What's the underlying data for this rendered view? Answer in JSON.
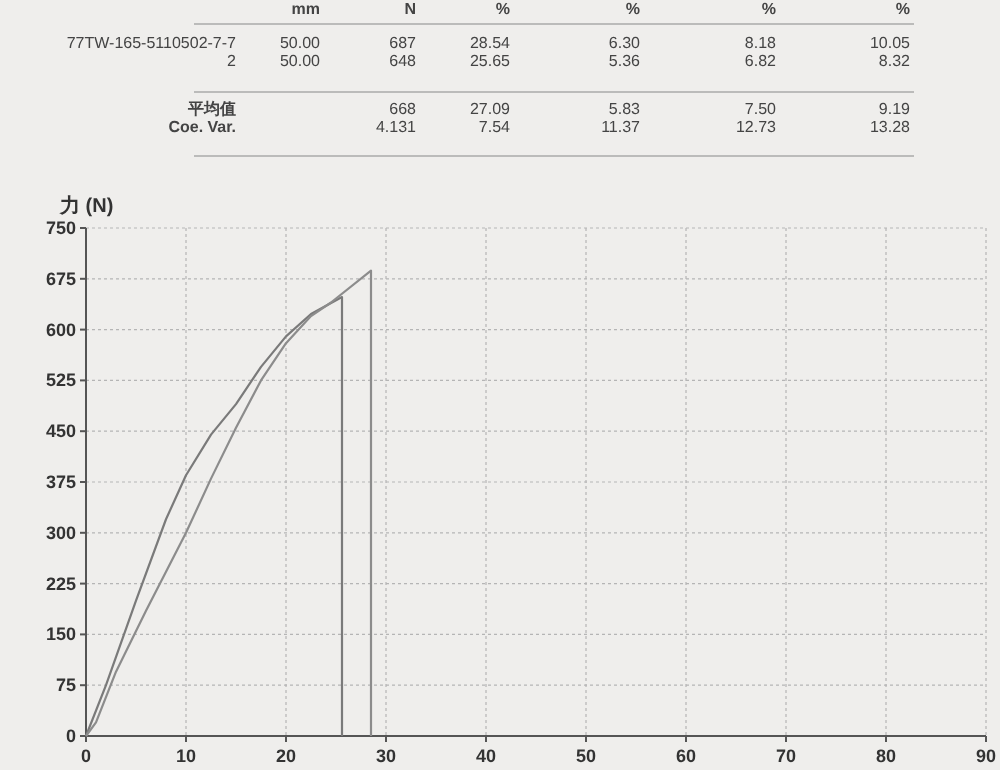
{
  "chart_data": {
    "type": "line",
    "ylabel": "力 (N)",
    "annotations": [
      "mm",
      "N",
      "%",
      "%",
      "%",
      "%",
      "77TW-165-5110502-7-7",
      "50.00",
      "687",
      "28.54",
      "6.30",
      "8.18",
      "10.05",
      "2",
      "50.00",
      "648",
      "25.65",
      "5.36",
      "6.82",
      "8.32",
      "平均值",
      "668",
      "27.09",
      "5.83",
      "7.50",
      "9.19",
      "Coe. Var.",
      "4.131",
      "7.54",
      "11.37",
      "12.73",
      "13.28"
    ],
    "xlim": [
      0,
      90
    ],
    "xticks": [
      0,
      10,
      20,
      30,
      40,
      50,
      60,
      70,
      80,
      90
    ],
    "ylim": [
      0,
      750
    ],
    "yticks": [
      0,
      75,
      150,
      225,
      300,
      375,
      450,
      525,
      600,
      675,
      750
    ],
    "grid": true,
    "line_style": "solid",
    "series": [
      {
        "color": "#7a7a7a",
        "x": [
          0,
          2,
          5,
          8,
          10,
          12.5,
          15,
          17.5,
          20,
          22.5,
          25.6,
          25.6
        ],
        "values": [
          0,
          75,
          200,
          320,
          385,
          445,
          490,
          545,
          590,
          623,
          648,
          0
        ]
      },
      {
        "color": "#8c8c8c",
        "x": [
          0,
          1,
          3,
          6,
          10,
          12.5,
          15,
          17.5,
          20,
          22.5,
          24.5,
          28.5,
          28.5
        ],
        "values": [
          0,
          20,
          95,
          185,
          300,
          380,
          455,
          525,
          580,
          620,
          640,
          687,
          0
        ]
      }
    ]
  }
}
